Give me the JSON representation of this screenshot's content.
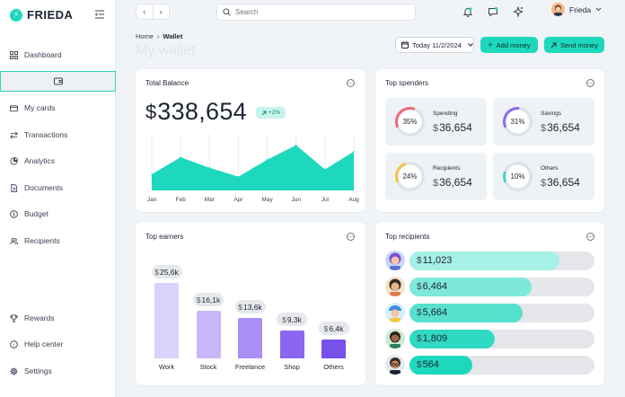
{
  "brand": {
    "name": "FRIEDA",
    "accent": "#1ed8bd"
  },
  "sidebar": {
    "items": [
      {
        "label": "Dashboard",
        "icon": "grid-icon"
      },
      {
        "label": "",
        "icon": "wallet-icon",
        "active": true
      },
      {
        "label": "My cards",
        "icon": "card-icon"
      },
      {
        "label": "Transactions",
        "icon": "arrows-icon"
      },
      {
        "label": "Analytics",
        "icon": "pie-chart-icon"
      },
      {
        "label": "Documents",
        "icon": "document-icon"
      },
      {
        "label": "Budget",
        "icon": "dollar-icon"
      },
      {
        "label": "Recipients",
        "icon": "users-icon"
      }
    ],
    "bottom_items": [
      {
        "label": "Rewards",
        "icon": "trophy-icon"
      },
      {
        "label": "Help center",
        "icon": "help-icon"
      },
      {
        "label": "Settings",
        "icon": "gear-icon"
      }
    ]
  },
  "topbar": {
    "search_placeholder": "Search",
    "user_name": "Frieda"
  },
  "header": {
    "breadcrumb_home": "Home",
    "breadcrumb_current": "Wallet",
    "title": "My wallet",
    "date_label": "Today 11/2/2024",
    "add_money": "Add money",
    "send_money": "Send money"
  },
  "total_balance": {
    "title": "Total Balance",
    "currency": "$",
    "amount": "338,654",
    "change": "+2%"
  },
  "chart_data": {
    "type": "area",
    "categories": [
      "Jan",
      "Feb",
      "Mar",
      "Apr",
      "May",
      "Jun",
      "Jul",
      "Aug"
    ],
    "values": [
      20,
      41,
      28,
      17,
      38,
      56,
      26,
      48
    ],
    "ylim": [
      0,
      70
    ],
    "color": "#1ed8bd"
  },
  "top_spenders": {
    "title": "Top spenders",
    "items": [
      {
        "label": "Spending",
        "pct": 35,
        "pct_label": "35%",
        "currency": "$",
        "amount": "36,654",
        "color": "#f26b7a"
      },
      {
        "label": "Savings",
        "pct": 31,
        "pct_label": "31%",
        "currency": "$",
        "amount": "36,654",
        "color": "#8e6cf0"
      },
      {
        "label": "Recipients",
        "pct": 24,
        "pct_label": "24%",
        "currency": "$",
        "amount": "36,654",
        "color": "#f5c542"
      },
      {
        "label": "Others",
        "pct": 10,
        "pct_label": "10%",
        "currency": "$",
        "amount": "36,654",
        "color": "#3ed9c4"
      }
    ]
  },
  "top_earners": {
    "title": "Top earners",
    "items": [
      {
        "label": "Work",
        "currency": "$",
        "value_label": "25,6k",
        "value": 25.6,
        "color": "#d9d2fb"
      },
      {
        "label": "Stock",
        "currency": "$",
        "value_label": "16,1k",
        "value": 16.1,
        "color": "#c7b7f8"
      },
      {
        "label": "Freelance",
        "currency": "$",
        "value_label": "13,6k",
        "value": 13.6,
        "color": "#a98ef5"
      },
      {
        "label": "Shop",
        "currency": "$",
        "value_label": "9,3k",
        "value": 9.3,
        "color": "#8b66f0"
      },
      {
        "label": "Others",
        "currency": "$",
        "value_label": "6,4k",
        "value": 6.4,
        "color": "#7850ea"
      }
    ]
  },
  "top_recipients": {
    "title": "Top recipients",
    "items": [
      {
        "currency": "$",
        "amount": "11,023",
        "fraction": 0.81,
        "color": "#a6f1e6",
        "avatar": "avatar-purple-hair"
      },
      {
        "currency": "$",
        "amount": "6,464",
        "fraction": 0.66,
        "color": "#7ee8d9",
        "avatar": "avatar-dark-hair"
      },
      {
        "currency": "$",
        "amount": "5,664",
        "fraction": 0.61,
        "color": "#57e0cc",
        "avatar": "avatar-blue-cap"
      },
      {
        "currency": "$",
        "amount": "1,809",
        "fraction": 0.46,
        "color": "#2fd9c2",
        "avatar": "avatar-beard"
      },
      {
        "currency": "$",
        "amount": "564",
        "fraction": 0.34,
        "color": "#1ed8bd",
        "avatar": "avatar-glasses"
      }
    ]
  }
}
